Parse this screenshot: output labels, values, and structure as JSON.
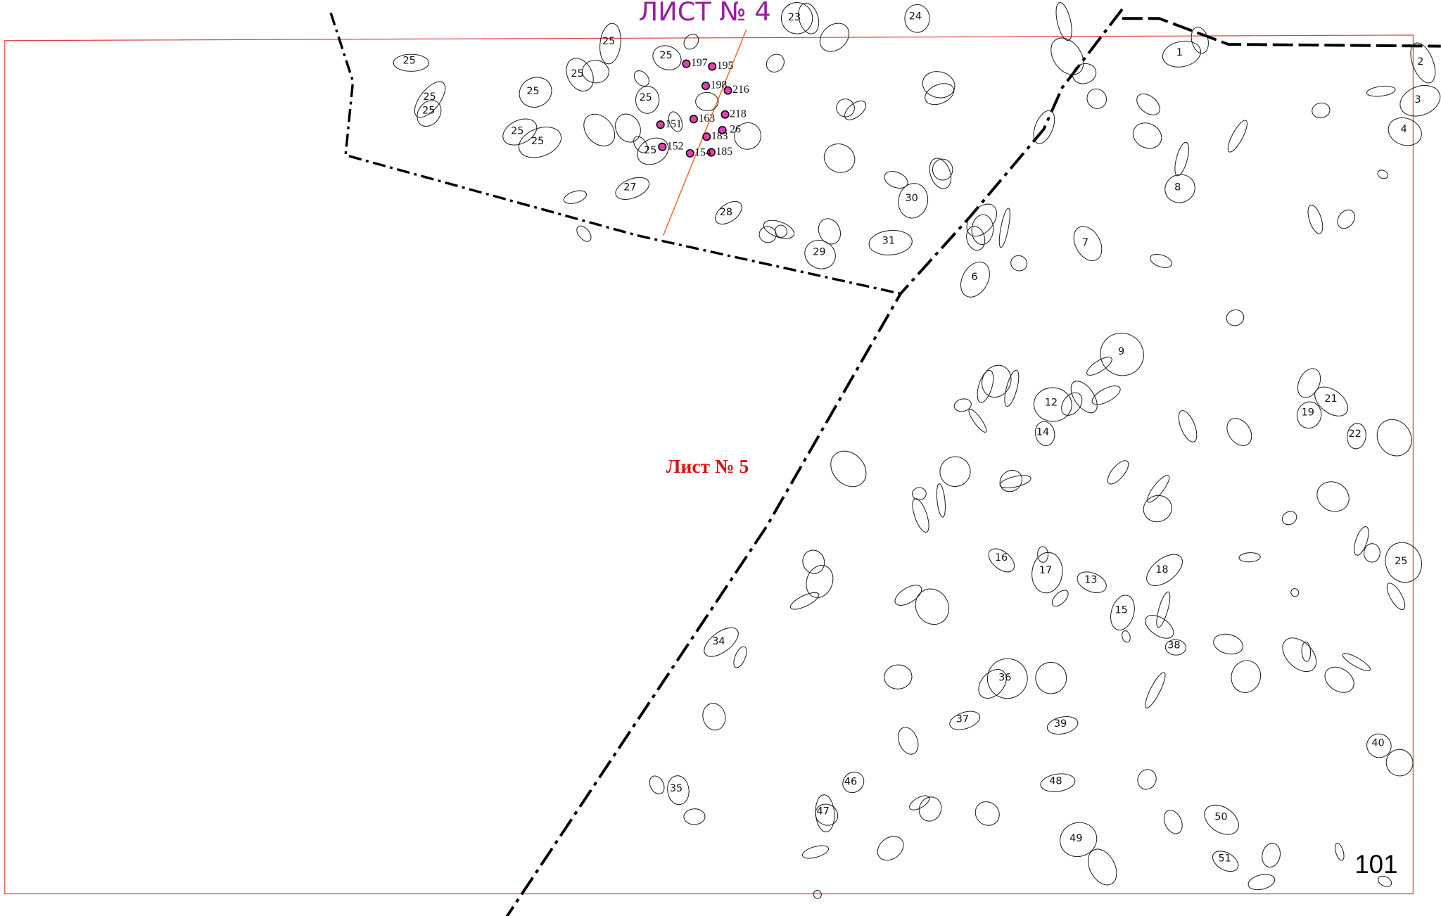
{
  "sheets": {
    "sheet_4": "ЛИСТ № 4",
    "sheet_5": "Лист № 5",
    "page_number": "101"
  },
  "parcel_labels": [
    "23",
    "24",
    "25",
    "25",
    "25",
    "25",
    "25",
    "25",
    "25",
    "25",
    "25",
    "25",
    "25",
    "1",
    "2",
    "3",
    "4",
    "197",
    "195",
    "198",
    "216",
    "218",
    "26",
    "163",
    "151",
    "152",
    "183",
    "154",
    "185",
    "27",
    "28",
    "30",
    "31",
    "29",
    "8",
    "7",
    "6",
    "9",
    "12",
    "14",
    "19",
    "21",
    "22",
    "16",
    "17",
    "13",
    "18",
    "15",
    "25",
    "34",
    "38",
    "36",
    "37",
    "39",
    "40",
    "46",
    "48",
    "35",
    "47",
    "50",
    "49",
    "51"
  ]
}
